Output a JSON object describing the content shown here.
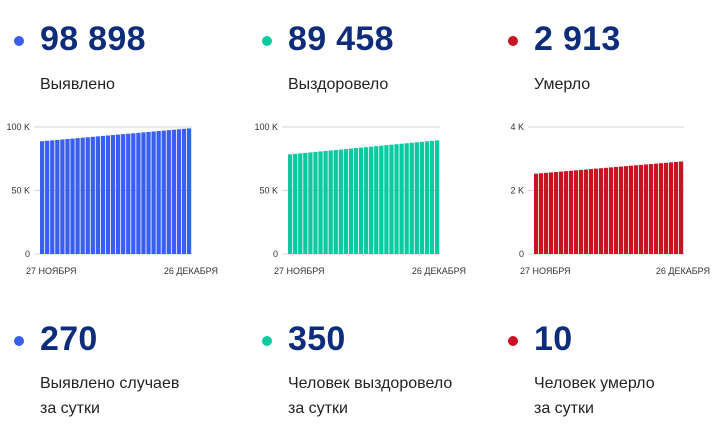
{
  "colors": {
    "blue": "#3a5ef0",
    "teal": "#0bcaa0",
    "red": "#c81321",
    "grid": "#d4d4d4"
  },
  "stats": [
    {
      "total": "98 898",
      "total_label": "Выявлено",
      "daily": "270",
      "daily_label_1": "Выявлено случаев",
      "daily_label_2": "за сутки"
    },
    {
      "total": "89 458",
      "total_label": "Выздоровело",
      "daily": "350",
      "daily_label_1": "Человек выздоровело",
      "daily_label_2": "за сутки"
    },
    {
      "total": "2 913",
      "total_label": "Умерло",
      "daily": "10",
      "daily_label_1": "Человек умерло",
      "daily_label_2": "за сутки"
    }
  ],
  "chart_data": [
    {
      "type": "bar",
      "color": "blue",
      "x_start": "27 НОЯБРЯ",
      "x_end": "26 ДЕКАБРЯ",
      "y_ticks": [
        {
          "value": 0,
          "label": "0"
        },
        {
          "value": 50000,
          "label": "50 K"
        },
        {
          "value": 100000,
          "label": "100 K"
        }
      ],
      "ylim": [
        0,
        100000
      ],
      "start": 88800,
      "end": 98898,
      "bars": 30
    },
    {
      "type": "bar",
      "color": "teal",
      "x_start": "27 НОЯБРЯ",
      "x_end": "26 ДЕКАБРЯ",
      "y_ticks": [
        {
          "value": 0,
          "label": "0"
        },
        {
          "value": 50000,
          "label": "50 K"
        },
        {
          "value": 100000,
          "label": "100 K"
        }
      ],
      "ylim": [
        0,
        100000
      ],
      "start": 78500,
      "end": 89458,
      "bars": 30
    },
    {
      "type": "bar",
      "color": "red",
      "x_start": "27 НОЯБРЯ",
      "x_end": "26 ДЕКАБРЯ",
      "y_ticks": [
        {
          "value": 0,
          "label": "0"
        },
        {
          "value": 2000,
          "label": "2 K"
        },
        {
          "value": 4000,
          "label": "4 K"
        }
      ],
      "ylim": [
        0,
        4000
      ],
      "start": 2530,
      "end": 2913,
      "bars": 30
    }
  ]
}
